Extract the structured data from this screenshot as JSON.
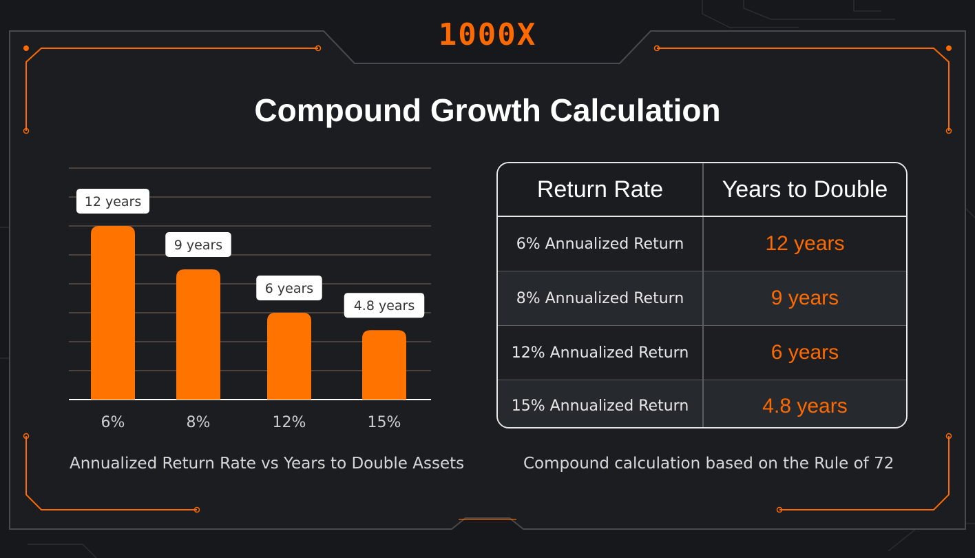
{
  "brand": {
    "logo_text": "1000X",
    "accent_color": "#ff6a00"
  },
  "title": "Compound Growth Calculation",
  "chart_data": {
    "type": "bar",
    "categories": [
      "6%",
      "8%",
      "12%",
      "15%"
    ],
    "values": [
      12,
      9,
      6,
      4.8
    ],
    "data_labels": [
      "12 years",
      "9 years",
      "6 years",
      "4.8 years"
    ],
    "ylim": [
      0,
      16
    ],
    "grid": true,
    "bar_color": "#ff7300",
    "caption": "Annualized Return Rate vs Years to Double Assets"
  },
  "table": {
    "headers": [
      "Return Rate",
      "Years to Double"
    ],
    "rows": [
      {
        "rate": "6% Annualized Return",
        "years": "12 years"
      },
      {
        "rate": "8% Annualized Return",
        "years": "9 years"
      },
      {
        "rate": "12% Annualized Return",
        "years": "6 years"
      },
      {
        "rate": "15% Annualized Return",
        "years": "4.8 years"
      }
    ],
    "caption": "Compound calculation based on the Rule of 72"
  }
}
